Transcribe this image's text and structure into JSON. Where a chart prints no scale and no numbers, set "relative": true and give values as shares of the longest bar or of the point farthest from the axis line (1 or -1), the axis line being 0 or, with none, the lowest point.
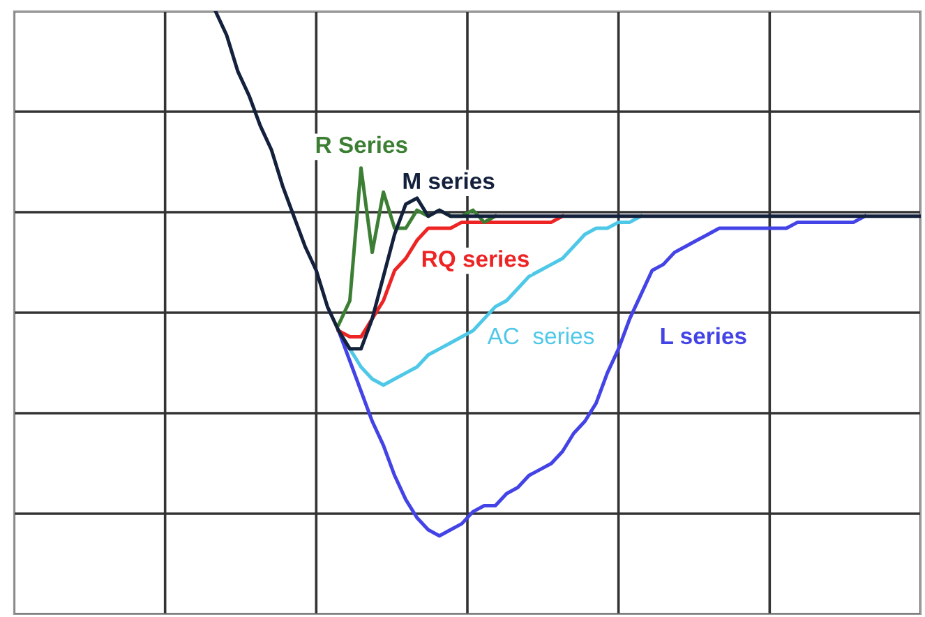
{
  "chart_data": {
    "type": "line",
    "relative": true,
    "grid": true,
    "tick_labels": false,
    "categories": [
      null,
      null,
      null,
      null,
      null,
      null,
      null,
      null,
      null,
      null,
      null,
      null,
      null,
      null,
      null,
      null,
      null,
      null,
      null,
      null,
      null,
      null,
      null,
      null,
      null,
      null,
      null,
      null,
      null,
      null,
      null,
      null,
      null,
      null,
      null,
      null,
      null,
      null,
      null,
      null,
      null,
      null,
      null,
      null,
      null,
      null,
      null,
      null,
      null,
      null,
      null,
      null,
      null,
      null,
      null,
      null,
      null,
      null,
      null,
      null,
      null,
      null,
      null,
      null,
      null,
      null,
      null,
      null,
      null,
      null,
      null,
      null,
      null,
      null,
      null,
      null,
      null,
      null,
      null,
      null,
      null,
      null
    ],
    "series": [
      {
        "name": "AC  series",
        "color": "#4ec8e8",
        "values": [
          null,
          null,
          null,
          null,
          null,
          null,
          null,
          null,
          null,
          null,
          null,
          null,
          null,
          null,
          null,
          null,
          null,
          null,
          null,
          null,
          null,
          null,
          null,
          null,
          null,
          null,
          null,
          null,
          null,
          0.47,
          0.44,
          0.41,
          0.39,
          0.38,
          0.39,
          0.4,
          0.41,
          0.43,
          0.44,
          0.45,
          0.46,
          0.47,
          0.49,
          0.51,
          0.52,
          0.54,
          0.56,
          0.57,
          0.58,
          0.59,
          0.61,
          0.63,
          0.64,
          0.64,
          0.65,
          0.65,
          0.66,
          null,
          null,
          null,
          null,
          null,
          null,
          null,
          null,
          null,
          null,
          null,
          null,
          null,
          null,
          null,
          null,
          null,
          null,
          null,
          null,
          null,
          null,
          null,
          null,
          null
        ]
      },
      {
        "name": "L series",
        "color": "#4343e6",
        "values": [
          null,
          null,
          null,
          null,
          null,
          null,
          null,
          null,
          null,
          null,
          null,
          null,
          null,
          null,
          null,
          null,
          null,
          null,
          null,
          null,
          null,
          null,
          null,
          null,
          null,
          null,
          null,
          null,
          null,
          0.47,
          0.42,
          0.37,
          0.32,
          0.28,
          0.23,
          0.19,
          0.16,
          0.14,
          0.13,
          0.14,
          0.15,
          0.17,
          0.18,
          0.18,
          0.2,
          0.21,
          0.23,
          0.24,
          0.25,
          0.27,
          0.3,
          0.32,
          0.35,
          0.4,
          0.44,
          0.49,
          0.53,
          0.57,
          0.58,
          0.6,
          0.61,
          0.62,
          0.63,
          0.64,
          0.64,
          0.64,
          0.64,
          0.64,
          0.64,
          0.64,
          0.65,
          0.65,
          0.65,
          0.65,
          0.65,
          0.65,
          0.66,
          null,
          null,
          null,
          null,
          null
        ]
      },
      {
        "name": "RQ series",
        "color": "#ee2424",
        "values": [
          null,
          null,
          null,
          null,
          null,
          null,
          null,
          null,
          null,
          null,
          null,
          null,
          null,
          null,
          null,
          null,
          null,
          null,
          null,
          null,
          null,
          null,
          null,
          null,
          null,
          null,
          null,
          null,
          null,
          0.47,
          0.46,
          0.46,
          0.49,
          0.52,
          0.57,
          0.59,
          0.62,
          0.64,
          0.64,
          0.64,
          0.65,
          0.65,
          0.65,
          0.65,
          0.65,
          0.65,
          0.65,
          0.65,
          0.65,
          0.66,
          null,
          null,
          null,
          null,
          null,
          null,
          null,
          null,
          null,
          null,
          null,
          null,
          null,
          null,
          null,
          null,
          null,
          null,
          null,
          null,
          null,
          null,
          null,
          null,
          null,
          null,
          null,
          null,
          null,
          null,
          null,
          null
        ]
      },
      {
        "name": "R Series",
        "color": "#3c7f34",
        "values": [
          null,
          null,
          null,
          null,
          null,
          null,
          null,
          null,
          null,
          null,
          null,
          null,
          null,
          null,
          null,
          null,
          null,
          null,
          null,
          null,
          null,
          null,
          null,
          null,
          null,
          null,
          null,
          null,
          null,
          0.48,
          0.52,
          0.74,
          0.6,
          0.7,
          0.64,
          0.64,
          0.67,
          0.66,
          0.67,
          0.66,
          0.66,
          0.67,
          0.65,
          0.66,
          null,
          null,
          null,
          null,
          null,
          null,
          null,
          null,
          null,
          null,
          null,
          null,
          null,
          null,
          null,
          null,
          null,
          null,
          null,
          null,
          null,
          null,
          null,
          null,
          null,
          null,
          null,
          null,
          null,
          null,
          null,
          null,
          null,
          null,
          null,
          null,
          null,
          null
        ]
      },
      {
        "name": "M series",
        "color": "#14213d",
        "values": [
          null,
          null,
          null,
          null,
          null,
          null,
          null,
          null,
          null,
          null,
          null,
          null,
          null,
          null,
          null,
          null,
          null,
          null,
          1.0,
          0.96,
          0.9,
          0.86,
          0.81,
          0.77,
          0.71,
          0.66,
          0.61,
          0.57,
          0.51,
          0.47,
          0.44,
          0.44,
          0.49,
          0.56,
          0.63,
          0.68,
          0.69,
          0.66,
          0.67,
          0.66,
          0.66,
          0.66,
          0.66,
          0.66,
          0.66,
          0.66,
          0.66,
          0.66,
          0.66,
          0.66,
          0.66,
          0.66,
          0.66,
          0.66,
          0.66,
          0.66,
          0.66,
          0.66,
          0.66,
          0.66,
          0.66,
          0.66,
          0.66,
          0.66,
          0.66,
          0.66,
          0.66,
          0.66,
          0.66,
          0.66,
          0.66,
          0.66,
          0.66,
          0.66,
          0.66,
          0.66,
          0.66,
          0.66,
          0.66,
          0.66,
          0.66,
          0.66
        ]
      }
    ]
  }
}
